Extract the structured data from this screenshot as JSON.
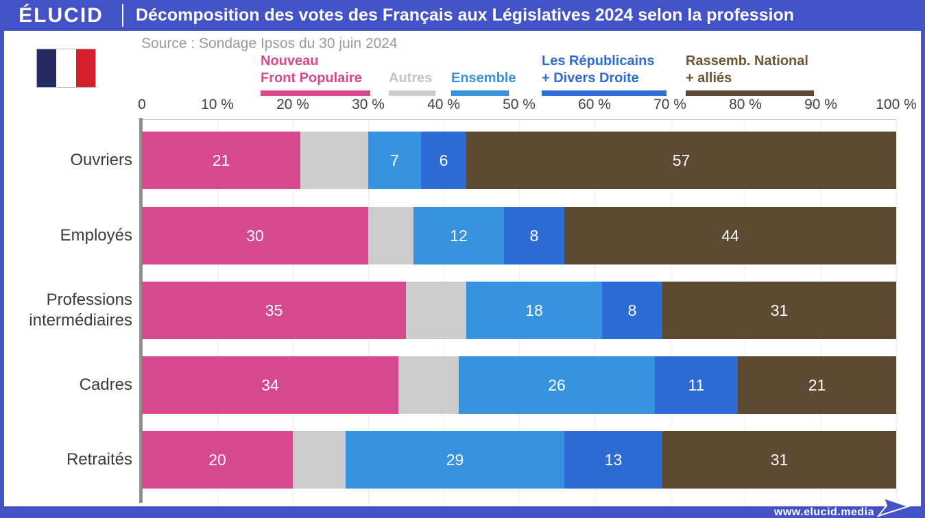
{
  "header": {
    "logo": "ÉLUCID",
    "title": "Décomposition des votes des Français aux Législatives 2024 selon la profession"
  },
  "source": "Source : Sondage Ipsos du 30 juin 2024",
  "footer": {
    "url": "www.elucid.media"
  },
  "colors": {
    "frame_blue": "#4353C6",
    "axis_spine_gray": "#8f8f8f",
    "flag_navy": "#252A62",
    "flag_white": "#FFFFFF",
    "flag_red": "#D51F2B"
  },
  "chart_data": {
    "type": "bar",
    "orientation": "horizontal",
    "stacked": true,
    "unit": "%",
    "title": "Décomposition des votes des Français aux Législatives 2024 selon la profession",
    "categories": [
      "Ouvriers",
      "Employés",
      "Professions intermédiaires",
      "Cadres",
      "Retraités"
    ],
    "series": [
      {
        "name": "Nouveau Front Populaire",
        "legend_lines": [
          "Nouveau",
          "Front Populaire"
        ],
        "color": "#D8488F",
        "text_color": "#D8488F",
        "values": [
          21,
          30,
          35,
          34,
          20
        ],
        "show_labels": true
      },
      {
        "name": "Autres",
        "legend_lines": [
          "Autres"
        ],
        "color": "#CCCCCC",
        "text_color": "#C4C4C4",
        "values": [
          9,
          6,
          8,
          8,
          7
        ],
        "show_labels": false
      },
      {
        "name": "Ensemble",
        "legend_lines": [
          "Ensemble"
        ],
        "color": "#3793E0",
        "text_color": "#3793E0",
        "values": [
          7,
          12,
          18,
          26,
          29
        ],
        "show_labels": true
      },
      {
        "name": "Les Républicains + Divers Droite",
        "legend_lines": [
          "Les Républicains",
          "+ Divers Droite"
        ],
        "color": "#2D6CD4",
        "text_color": "#2D6CD4",
        "values": [
          6,
          8,
          8,
          11,
          13
        ],
        "show_labels": true
      },
      {
        "name": "Rassemb. National + alliés",
        "legend_lines": [
          "Rassemb. National",
          "+ alliés"
        ],
        "color": "#5E4A33",
        "text_color": "#6E5433",
        "values": [
          57,
          44,
          31,
          21,
          31
        ],
        "show_labels": true
      }
    ],
    "x_ticks": [
      "0",
      "10 %",
      "20 %",
      "30 %",
      "40 %",
      "50 %",
      "60 %",
      "70 %",
      "80 %",
      "90 %",
      "100 %"
    ],
    "xlim": [
      0,
      100
    ],
    "grid": true,
    "legend_position": "top"
  }
}
